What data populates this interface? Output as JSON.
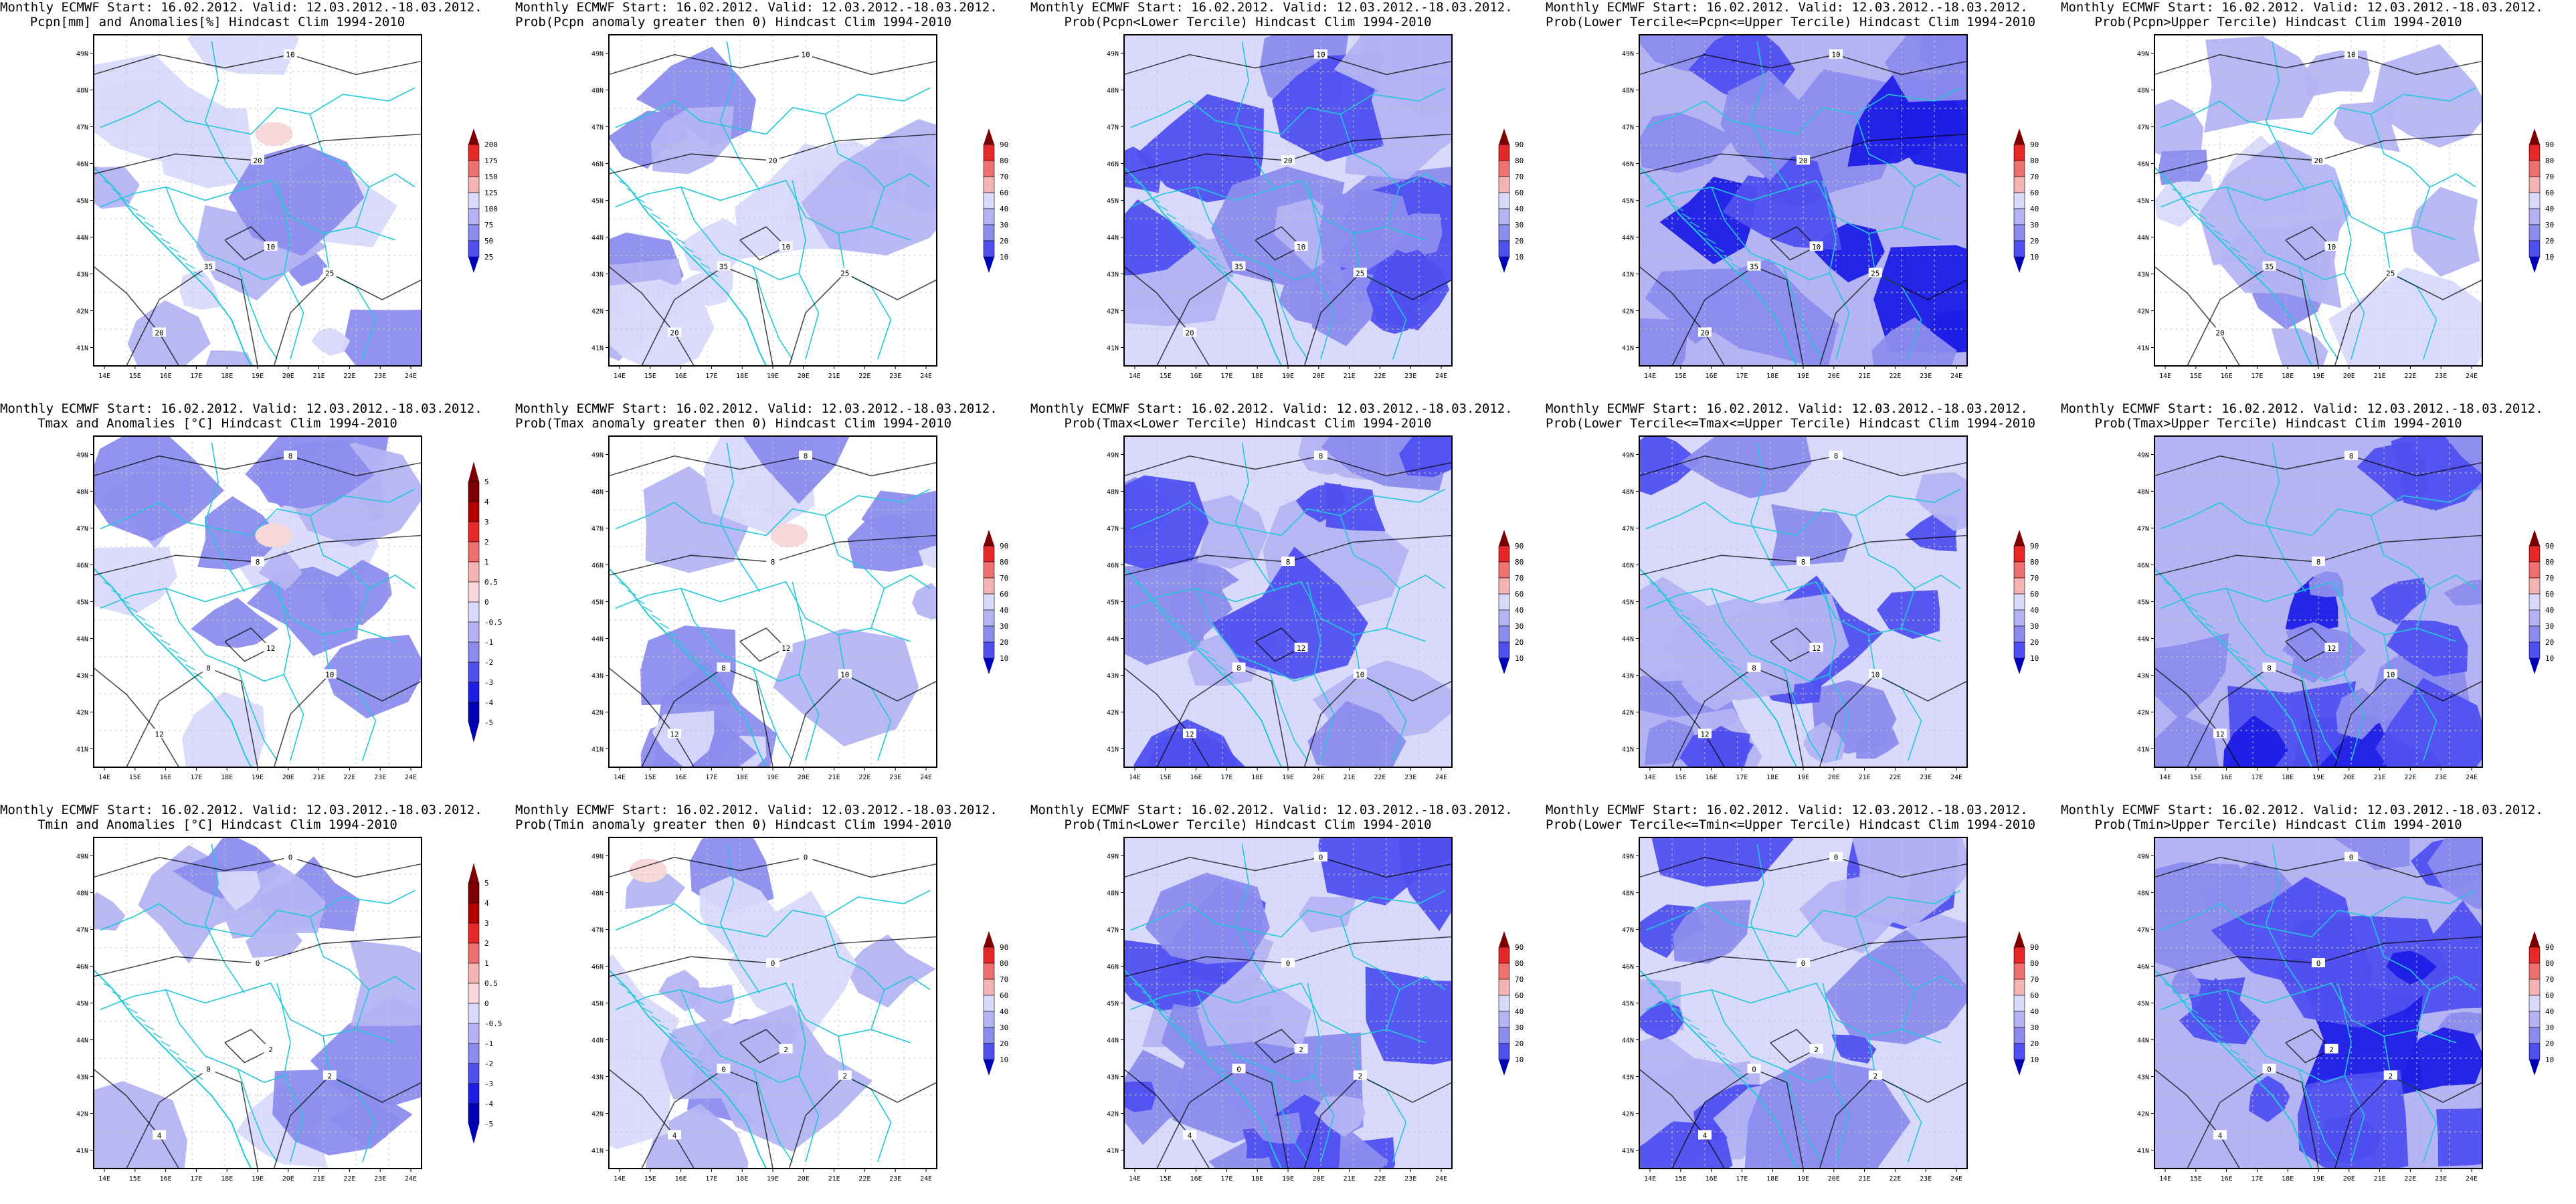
{
  "colors": {
    "blue_light": "#d9d9fb",
    "blue_1": "#b4b4f4",
    "blue_2": "#8c8cee",
    "blue_3": "#5050f0",
    "blue_4": "#1e1ee6",
    "blue_5": "#0000b4",
    "red_light": "#f8d8d8",
    "red_1": "#f4b4b4",
    "red_2": "#f07070",
    "red_3": "#e62828",
    "red_4": "#b40000",
    "red_5": "#7d0000",
    "country_border": "#20c8d8",
    "contour": "#000000"
  },
  "map_axes": {
    "lat_labels": [
      "49N",
      "48N",
      "47N",
      "46N",
      "45N",
      "44N",
      "43N",
      "42N",
      "41N"
    ],
    "lon_labels": [
      "14E",
      "15E",
      "16E",
      "17E",
      "18E",
      "19E",
      "20E",
      "21E",
      "22E",
      "23E",
      "24E"
    ]
  },
  "legends": {
    "pcpn_anom": [
      "200",
      "175",
      "150",
      "125",
      "100",
      "75",
      "50",
      "25"
    ],
    "temp_anom": [
      "5",
      "4",
      "3",
      "2",
      "1",
      "0.5",
      "0",
      "-0.5",
      "-1",
      "-2",
      "-3",
      "-4",
      "-5"
    ],
    "prob": [
      "90",
      "80",
      "70",
      "60",
      "40",
      "30",
      "20",
      "10"
    ]
  },
  "panels": [
    {
      "title1": "Monthly ECMWF Start: 16.02.2012. Valid: 12.03.2012.-18.03.2012.",
      "title2": "Pcpn[mm] and Anomalies[%] Hindcast Clim 1994-2010",
      "legend": "pcpn_anom",
      "fill": "light",
      "contour_labels": [
        "10",
        "20",
        "35",
        "25"
      ]
    },
    {
      "title1": "Monthly ECMWF Start: 16.02.2012. Valid: 12.03.2012.-18.03.2012.",
      "title2": "Prob(Pcpn anomaly greater then 0) Hindcast Clim 1994-2010",
      "legend": "prob",
      "fill": "light",
      "contour_labels": [
        "10",
        "20",
        "35",
        "25"
      ]
    },
    {
      "title1": "Monthly ECMWF Start: 16.02.2012. Valid: 12.03.2012.-18.03.2012.",
      "title2": "Prob(Pcpn<Lower Tercile) Hindcast Clim 1994-2010",
      "legend": "prob",
      "fill": "medium",
      "contour_labels": [
        "10",
        "20",
        "35",
        "25"
      ]
    },
    {
      "title1": "Monthly ECMWF Start: 16.02.2012. Valid: 12.03.2012.-18.03.2012.",
      "title2": "Prob(Lower Tercile<=Pcpn<=Upper Tercile) Hindcast Clim 1994-2010",
      "legend": "prob",
      "fill": "dark",
      "contour_labels": [
        "10",
        "20",
        "35",
        "25"
      ]
    },
    {
      "title1": "Monthly ECMWF Start: 16.02.2012. Valid: 12.03.2012.-18.03.2012.",
      "title2": "Prob(Pcpn>Upper Tercile) Hindcast Clim 1994-2010",
      "legend": "prob",
      "fill": "light",
      "contour_labels": [
        "10",
        "20",
        "35",
        "25"
      ]
    },
    {
      "title1": "Monthly ECMWF Start: 16.02.2012. Valid: 12.03.2012.-18.03.2012.",
      "title2": "Tmax and Anomalies [°C] Hindcast Clim 1994-2010",
      "legend": "temp_anom",
      "fill": "light",
      "contour_labels": [
        "8",
        "8",
        "8",
        "10",
        "12",
        "12"
      ]
    },
    {
      "title1": "Monthly ECMWF Start: 16.02.2012. Valid: 12.03.2012.-18.03.2012.",
      "title2": "Prob(Tmax anomaly greater then 0) Hindcast Clim 1994-2010",
      "legend": "prob",
      "fill": "light",
      "contour_labels": [
        "8",
        "8",
        "8",
        "10",
        "12",
        "12"
      ]
    },
    {
      "title1": "Monthly ECMWF Start: 16.02.2012. Valid: 12.03.2012.-18.03.2012.",
      "title2": "Prob(Tmax<Lower Tercile) Hindcast Clim 1994-2010",
      "legend": "prob",
      "fill": "medium",
      "contour_labels": [
        "8",
        "8",
        "8",
        "10",
        "12",
        "12"
      ]
    },
    {
      "title1": "Monthly ECMWF Start: 16.02.2012. Valid: 12.03.2012.-18.03.2012.",
      "title2": "Prob(Lower Tercile<=Tmax<=Upper Tercile) Hindcast Clim 1994-2010",
      "legend": "prob",
      "fill": "medium",
      "contour_labels": [
        "8",
        "8",
        "8",
        "10",
        "12",
        "12"
      ]
    },
    {
      "title1": "Monthly ECMWF Start: 16.02.2012. Valid: 12.03.2012.-18.03.2012.",
      "title2": "Prob(Tmax>Upper Tercile) Hindcast Clim 1994-2010",
      "legend": "prob",
      "fill": "dark",
      "contour_labels": [
        "8",
        "8",
        "8",
        "10",
        "12",
        "12"
      ]
    },
    {
      "title1": "Monthly ECMWF Start: 16.02.2012. Valid: 12.03.2012.-18.03.2012.",
      "title2": "Tmin and Anomalies [°C] Hindcast Clim 1994-2010",
      "legend": "temp_anom",
      "fill": "light",
      "contour_labels": [
        "0",
        "0",
        "0",
        "2",
        "2",
        "4"
      ]
    },
    {
      "title1": "Monthly ECMWF Start: 16.02.2012. Valid: 12.03.2012.-18.03.2012.",
      "title2": "Prob(Tmin anomaly greater then 0) Hindcast Clim 1994-2010",
      "legend": "prob",
      "fill": "light",
      "contour_labels": [
        "0",
        "0",
        "0",
        "2",
        "2",
        "4"
      ]
    },
    {
      "title1": "Monthly ECMWF Start: 16.02.2012. Valid: 12.03.2012.-18.03.2012.",
      "title2": "Prob(Tmin<Lower Tercile) Hindcast Clim 1994-2010",
      "legend": "prob",
      "fill": "medium",
      "contour_labels": [
        "0",
        "0",
        "0",
        "2",
        "2",
        "4"
      ]
    },
    {
      "title1": "Monthly ECMWF Start: 16.02.2012. Valid: 12.03.2012.-18.03.2012.",
      "title2": "Prob(Lower Tercile<=Tmin<=Upper Tercile) Hindcast Clim 1994-2010",
      "legend": "prob",
      "fill": "medium",
      "contour_labels": [
        "0",
        "0",
        "0",
        "2",
        "2",
        "4"
      ]
    },
    {
      "title1": "Monthly ECMWF Start: 16.02.2012. Valid: 12.03.2012.-18.03.2012.",
      "title2": "Prob(Tmin>Upper Tercile) Hindcast Clim 1994-2010",
      "legend": "prob",
      "fill": "dark",
      "contour_labels": [
        "0",
        "0",
        "0",
        "2",
        "2",
        "4"
      ]
    }
  ]
}
